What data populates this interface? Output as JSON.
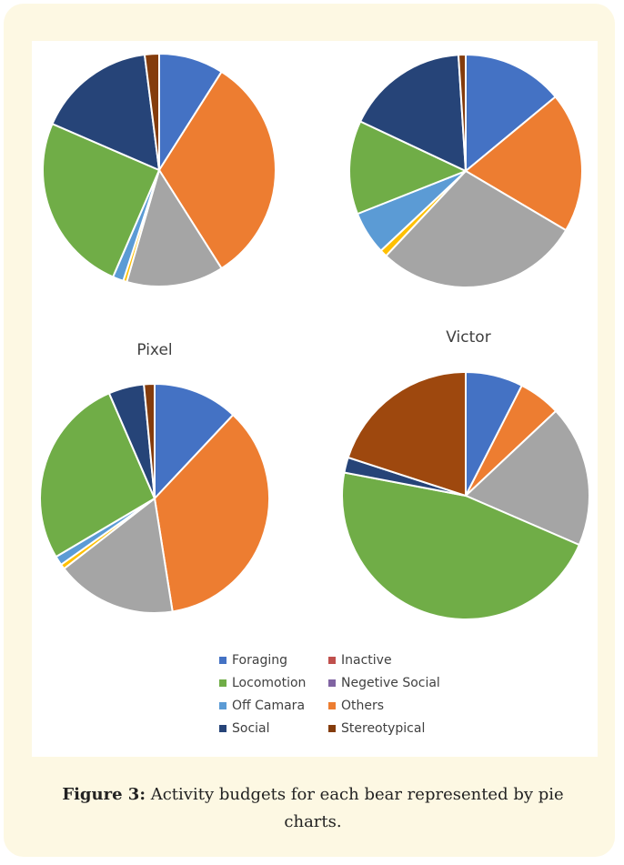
{
  "chart_data": [
    {
      "type": "pie",
      "values": [
        9,
        32,
        13.5,
        0.5,
        1.5,
        25,
        16.5,
        2
      ],
      "colors": [
        "#4472c4",
        "#ed7d31",
        "#a5a5a5",
        "#ffc000",
        "#5b9bd5",
        "#70ad47",
        "#264478",
        "#843c0c"
      ]
    },
    {
      "type": "pie",
      "values": [
        14,
        19.5,
        28.5,
        1,
        6,
        13,
        17,
        1
      ],
      "colors": [
        "#4472c4",
        "#ed7d31",
        "#a5a5a5",
        "#ffc000",
        "#5b9bd5",
        "#70ad47",
        "#264478",
        "#843c0c"
      ]
    },
    {
      "type": "pie",
      "title": "Pixel",
      "values": [
        12,
        35.5,
        17,
        0.7,
        1.3,
        27,
        5,
        1.5
      ],
      "colors": [
        "#4472c4",
        "#ed7d31",
        "#a5a5a5",
        "#ffc000",
        "#5b9bd5",
        "#70ad47",
        "#264478",
        "#843c0c"
      ]
    },
    {
      "type": "pie",
      "title": "Victor",
      "values": [
        7.5,
        5.5,
        18.5,
        46.5,
        2,
        20
      ],
      "colors": [
        "#4472c4",
        "#ed7d31",
        "#a5a5a5",
        "#70ad47",
        "#264478",
        "#9e480e"
      ]
    }
  ],
  "legend": [
    {
      "name": "Foraging",
      "color": "#4472c4"
    },
    {
      "name": "Inactive",
      "color": "#c0504d"
    },
    {
      "name": "Locomotion",
      "color": "#70ad47"
    },
    {
      "name": "Negetive Social",
      "color": "#8064a2"
    },
    {
      "name": "Off Camara",
      "color": "#5b9bd5"
    },
    {
      "name": "Others",
      "color": "#ed7d31"
    },
    {
      "name": "Social",
      "color": "#264478"
    },
    {
      "name": "Stereotypical",
      "color": "#843c0c"
    }
  ],
  "caption": {
    "label": "Figure 3:",
    "text": "Activity budgets for each bear represented by pie charts."
  }
}
